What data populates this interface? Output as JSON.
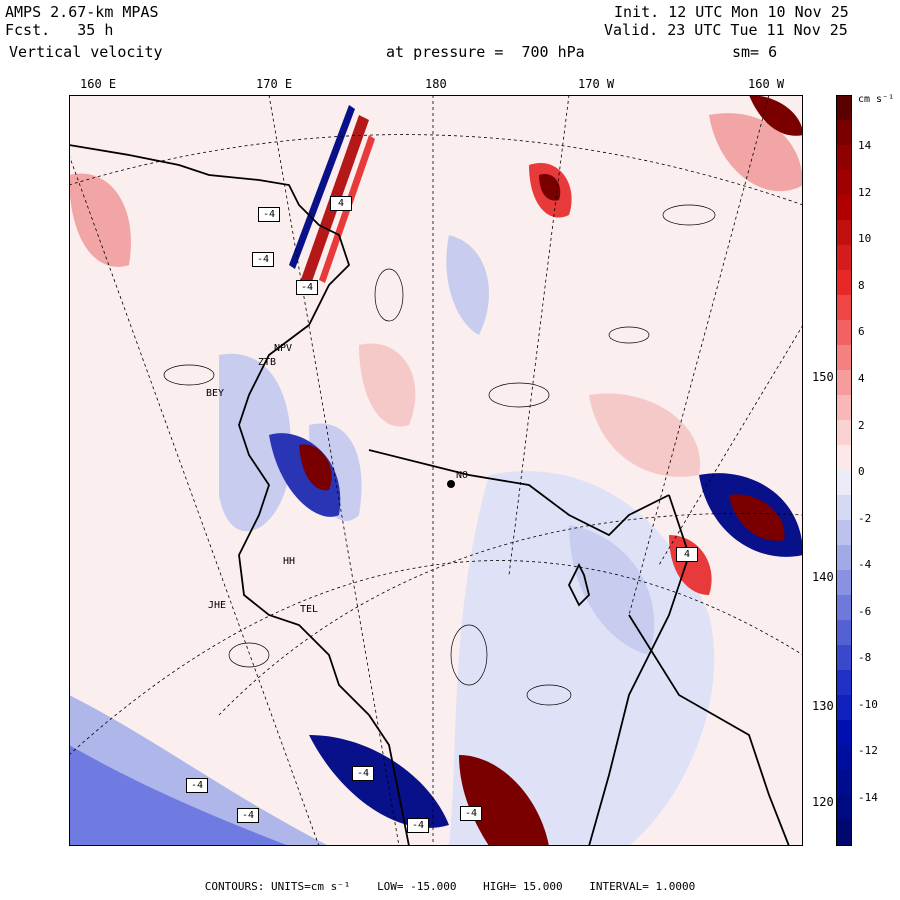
{
  "header": {
    "model": "AMPS 2.67-km MPAS",
    "forecast": "Fcst.   35 h",
    "field": "Vertical velocity",
    "init": "Init. 12 UTC Mon 10 Nov 25",
    "valid": "Valid. 23 UTC Tue 11 Nov 25",
    "level": "at pressure =  700 hPa",
    "smoothing": "sm= 6"
  },
  "map": {
    "longitude_labels": [
      "160 E",
      "170 E",
      "180",
      "170 W",
      "160 W"
    ],
    "latitude_labels": [
      "150 W",
      "140 W",
      "130 W",
      "120 W"
    ],
    "station_labels": [
      "NPV",
      "ZTB",
      "BEY",
      "HH",
      "JHE",
      "TEL",
      "NO"
    ],
    "warning_boxes": [
      "-4",
      "-4",
      "4",
      "-4",
      "-4",
      "-4",
      "-4",
      "-4",
      "-4",
      "4"
    ]
  },
  "colorbar": {
    "units": "cm s⁻¹",
    "tick_labels": [
      "14",
      "12",
      "10",
      "8",
      "6",
      "4",
      "2",
      "0",
      "-2",
      "-4",
      "-6",
      "-8",
      "-10",
      "-12",
      "-14"
    ]
  },
  "footer": {
    "contours": "CONTOURS:  UNITS=cm s⁻¹",
    "low": "LOW= -15.000",
    "high": "HIGH=  15.000",
    "interval": "INTERVAL=   1.0000"
  },
  "colors": {
    "strong_up": "#7a0000",
    "up": "#e83a3a",
    "weak_up": "#f6c9c9",
    "neutral": "#fbeeee",
    "weak_down": "#c8cdf0",
    "down": "#4c5ad6",
    "strong_down": "#08108a"
  }
}
